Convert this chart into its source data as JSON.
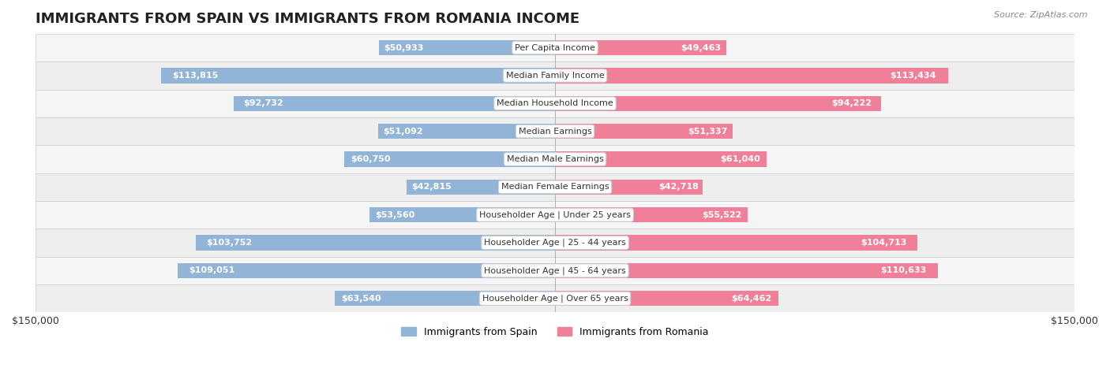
{
  "title": "IMMIGRANTS FROM SPAIN VS IMMIGRANTS FROM ROMANIA INCOME",
  "source": "Source: ZipAtlas.com",
  "categories": [
    "Per Capita Income",
    "Median Family Income",
    "Median Household Income",
    "Median Earnings",
    "Median Male Earnings",
    "Median Female Earnings",
    "Householder Age | Under 25 years",
    "Householder Age | 25 - 44 years",
    "Householder Age | 45 - 64 years",
    "Householder Age | Over 65 years"
  ],
  "spain_values": [
    50933,
    113815,
    92732,
    51092,
    60750,
    42815,
    53560,
    103752,
    109051,
    63540
  ],
  "romania_values": [
    49463,
    113434,
    94222,
    51337,
    61040,
    42718,
    55522,
    104713,
    110633,
    64462
  ],
  "spain_labels": [
    "$50,933",
    "$113,815",
    "$92,732",
    "$51,092",
    "$60,750",
    "$42,815",
    "$53,560",
    "$103,752",
    "$109,051",
    "$63,540"
  ],
  "romania_labels": [
    "$49,463",
    "$113,434",
    "$94,222",
    "$51,337",
    "$61,040",
    "$42,718",
    "$55,522",
    "$104,713",
    "$110,633",
    "$64,462"
  ],
  "spain_color": "#92b4d7",
  "romania_color": "#f08099",
  "spain_label_color_inside": "#ffffff",
  "spain_label_color_outside": "#555555",
  "romania_label_color_inside": "#ffffff",
  "romania_label_color_outside": "#555555",
  "xlim": 150000,
  "bar_height": 0.55,
  "row_bg_colors": [
    "#f5f5f5",
    "#eeeeee"
  ],
  "legend_spain": "Immigrants from Spain",
  "legend_romania": "Immigrants from Romania",
  "inside_label_threshold": 30000
}
